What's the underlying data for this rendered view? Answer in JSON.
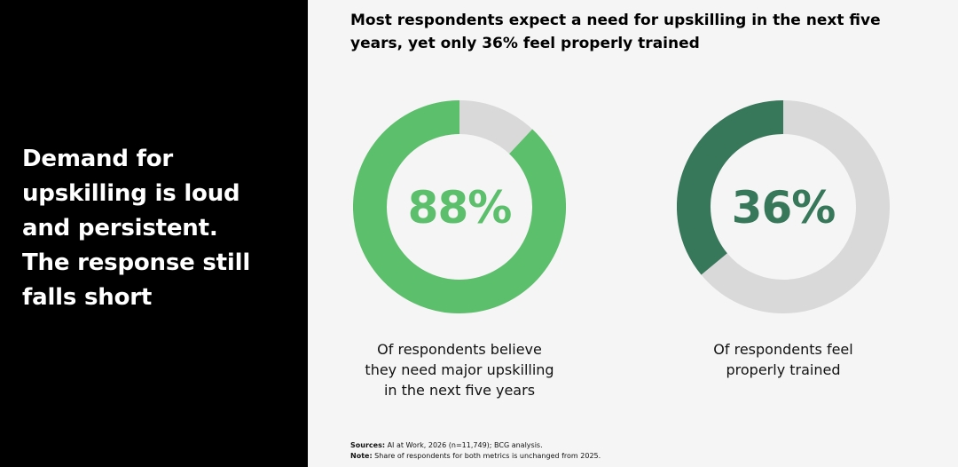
{
  "left_panel": {
    "heading_lines": [
      "Demand for",
      "upskilling is loud",
      "and persistent.",
      "The response still",
      "falls short"
    ]
  },
  "chart": {
    "title_lines": [
      "Most respondents expect a need for upskilling in the next five",
      "years, yet only 36% feel properly trained"
    ]
  },
  "chart_data": [
    {
      "type": "pie",
      "value": 88,
      "value_label": "88%",
      "caption_lines": [
        "Of respondents believe",
        "they need major upskilling",
        "in the next five years"
      ],
      "fill_color": "#5cbf6b",
      "track_color": "#d9d9d9",
      "label_color": "#5cbf6b"
    },
    {
      "type": "pie",
      "value": 36,
      "value_label": "36%",
      "caption_lines": [
        "Of respondents feel",
        "properly trained"
      ],
      "fill_color": "#37775a",
      "track_color": "#d9d9d9",
      "label_color": "#37775a"
    }
  ],
  "footnotes": {
    "sources_label": "Sources:",
    "sources_text": " AI at Work, 2026 (n=11,749); BCG analysis.",
    "note_label": "Note:",
    "note_text": " Share of respondents for both metrics is unchanged from 2025."
  }
}
